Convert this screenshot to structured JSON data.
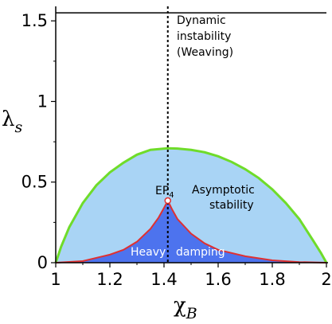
{
  "chart_data": {
    "type": "area",
    "xlabel": {
      "symbol": "χ",
      "subscript": "B"
    },
    "ylabel": {
      "symbol": "λ",
      "subscript": "s"
    },
    "xlim": [
      1,
      2
    ],
    "ylim": [
      0,
      1.58
    ],
    "x_ticks": [
      "1",
      "1.2",
      "1.4",
      "1.6",
      "1.8",
      "2"
    ],
    "y_ticks": [
      "0",
      "0.5",
      "1",
      "1.5"
    ],
    "grid": false,
    "colors": {
      "upper_curve": "#6fdc2a",
      "lower_curve": "#e03030",
      "asymptotic_fill": "#a9d4f5",
      "heavy_fill": "#4d73ee",
      "vertical_line": "#000000"
    },
    "upper_curve": {
      "x": [
        1.0,
        1.02,
        1.05,
        1.1,
        1.15,
        1.2,
        1.25,
        1.3,
        1.35,
        1.414,
        1.45,
        1.5,
        1.55,
        1.6,
        1.65,
        1.7,
        1.75,
        1.8,
        1.85,
        1.9,
        1.95,
        1.98,
        2.0
      ],
      "y": [
        0.0,
        0.1,
        0.22,
        0.37,
        0.48,
        0.56,
        0.62,
        0.67,
        0.7,
        0.71,
        0.708,
        0.7,
        0.685,
        0.66,
        0.625,
        0.58,
        0.525,
        0.455,
        0.37,
        0.27,
        0.14,
        0.06,
        0.0
      ]
    },
    "lower_curve": {
      "x": [
        1.0,
        1.1,
        1.2,
        1.25,
        1.3,
        1.35,
        1.38,
        1.4,
        1.414,
        1.43,
        1.45,
        1.5,
        1.55,
        1.6,
        1.7,
        1.8,
        1.9,
        2.0
      ],
      "y": [
        0.0,
        0.01,
        0.05,
        0.08,
        0.13,
        0.21,
        0.28,
        0.34,
        0.385,
        0.33,
        0.27,
        0.18,
        0.12,
        0.08,
        0.04,
        0.015,
        0.004,
        0.0
      ]
    },
    "top_boundary": 1.55,
    "vertical_line_x": 1.414,
    "ep4_point": {
      "x": 1.414,
      "y": 0.385,
      "label": "EP",
      "label_sub": "4"
    },
    "annotations": {
      "dynamic_instability": [
        "Dynamic",
        "instability",
        "(Weaving)"
      ],
      "asymptotic_stability": [
        "Asymptotic",
        "stability"
      ],
      "heavy_damping": [
        "Heavy",
        "damping"
      ]
    }
  }
}
